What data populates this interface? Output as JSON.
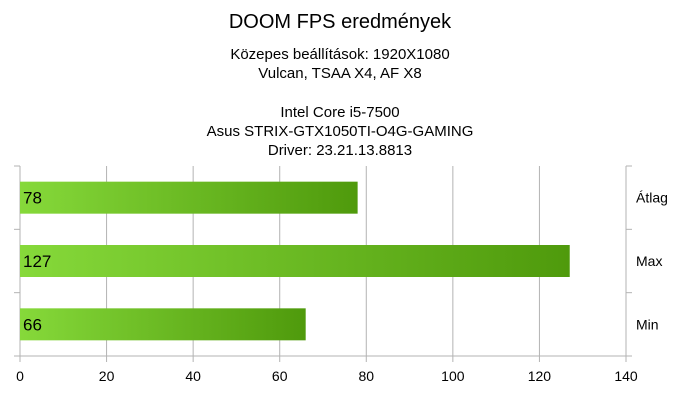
{
  "chart_data": {
    "type": "bar",
    "orientation": "horizontal",
    "title": "DOOM FPS eredmények",
    "subtitle_lines": [
      "Közepes beállítások: 1920X1080",
      "Vulcan, TSAA X4, AF X8",
      "Intel Core i5-7500",
      "Asus STRIX-GTX1050TI-O4G-GAMING",
      "Driver: 23.21.13.8813"
    ],
    "categories": [
      "Átlag",
      "Max",
      "Min"
    ],
    "values": [
      78,
      127,
      66
    ],
    "value_labels": [
      "78",
      "127",
      "66"
    ],
    "xlim": [
      0,
      140
    ],
    "xticks": [
      0,
      20,
      40,
      60,
      80,
      100,
      120,
      140
    ],
    "xlabel": "",
    "ylabel": "",
    "grid": true,
    "colors": {
      "bar_start": "#86d93a",
      "bar_end": "#4f9a0c",
      "grid": "#b3b3b3"
    }
  }
}
